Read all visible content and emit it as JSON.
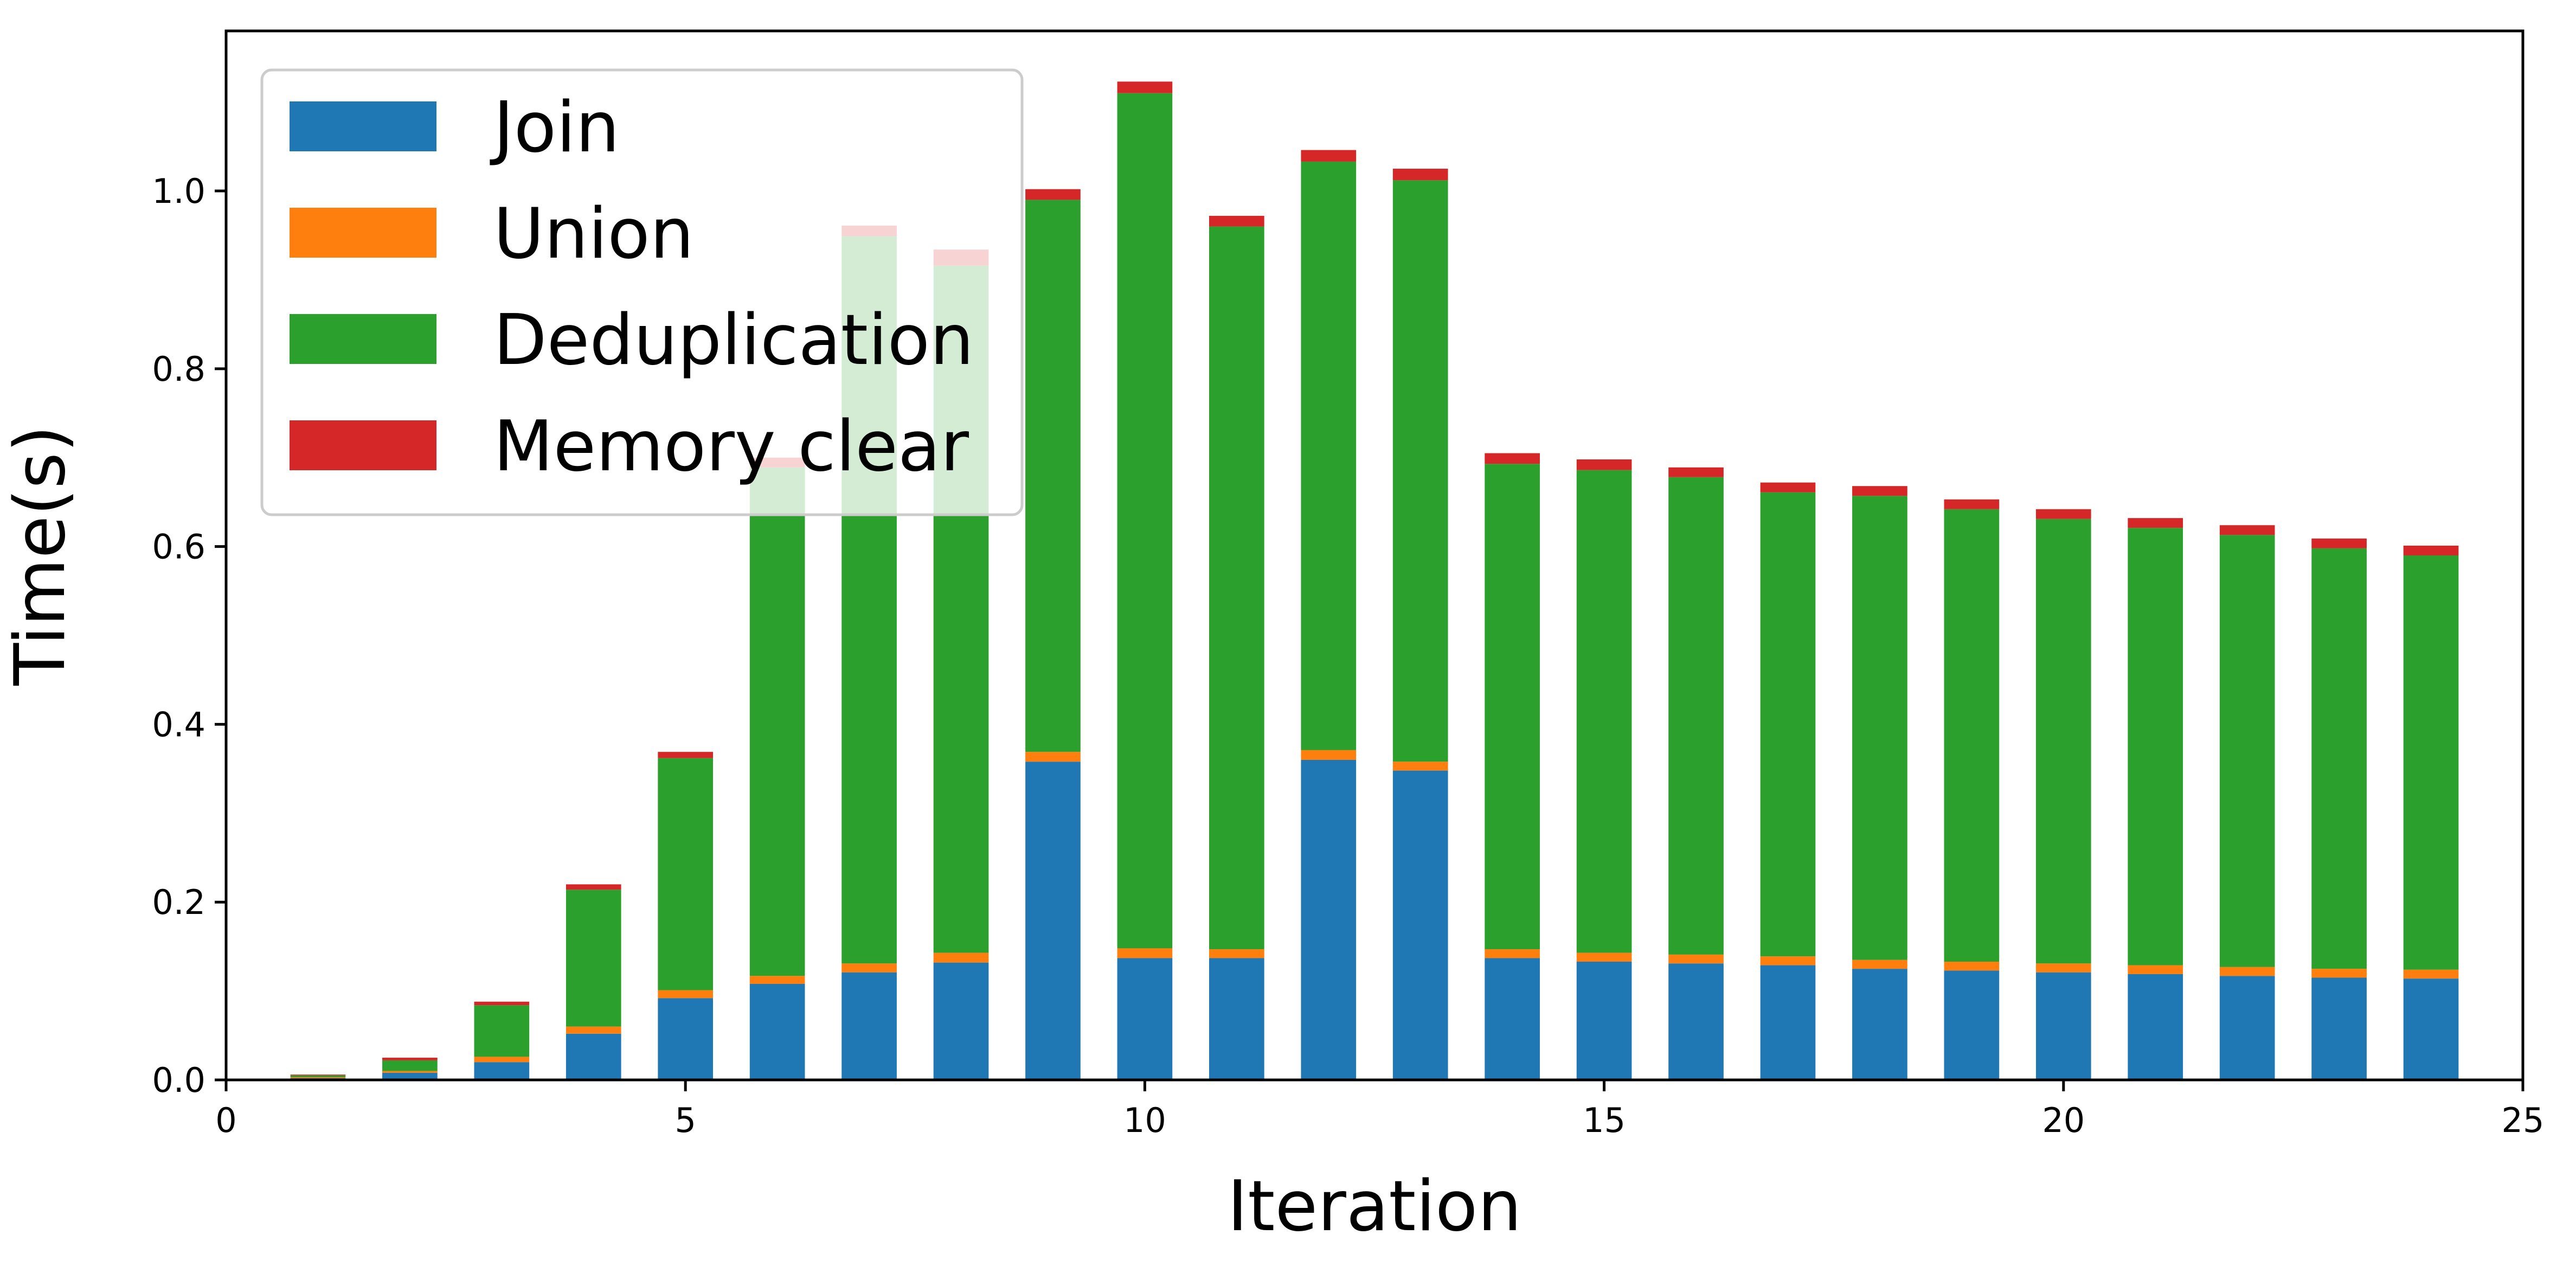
{
  "chart_data": {
    "type": "bar",
    "stacked": true,
    "xlabel": "Iteration",
    "ylabel": "Time(s)",
    "xlim": [
      0,
      25
    ],
    "ylim": [
      0,
      1.18
    ],
    "xticks": [
      "0",
      "5",
      "10",
      "15",
      "20",
      "25"
    ],
    "yticks": [
      "0.0",
      "0.2",
      "0.4",
      "0.6",
      "0.8",
      "1.0"
    ],
    "grid": false,
    "legend_position": "top-left",
    "x": [
      1,
      2,
      3,
      4,
      5,
      6,
      7,
      8,
      9,
      10,
      11,
      12,
      13,
      14,
      15,
      16,
      17,
      18,
      19,
      20,
      21,
      22,
      23,
      24
    ],
    "series": [
      {
        "name": "Join",
        "color": "#1f77b4",
        "values": [
          0.002,
          0.008,
          0.02,
          0.052,
          0.092,
          0.108,
          0.121,
          0.132,
          0.358,
          0.137,
          0.137,
          0.36,
          0.348,
          0.137,
          0.133,
          0.131,
          0.129,
          0.125,
          0.123,
          0.121,
          0.119,
          0.117,
          0.115,
          0.114
        ]
      },
      {
        "name": "Union",
        "color": "#ff7f0e",
        "values": [
          0.001,
          0.002,
          0.006,
          0.008,
          0.009,
          0.009,
          0.01,
          0.011,
          0.011,
          0.011,
          0.01,
          0.011,
          0.01,
          0.01,
          0.01,
          0.01,
          0.01,
          0.01,
          0.01,
          0.01,
          0.01,
          0.01,
          0.01,
          0.01
        ]
      },
      {
        "name": "Deduplication",
        "color": "#2ca02c",
        "values": [
          0.002,
          0.012,
          0.058,
          0.154,
          0.261,
          0.572,
          0.818,
          0.773,
          0.621,
          0.962,
          0.813,
          0.662,
          0.654,
          0.546,
          0.543,
          0.537,
          0.522,
          0.522,
          0.509,
          0.5,
          0.492,
          0.486,
          0.473,
          0.466
        ]
      },
      {
        "name": "Memory clear",
        "color": "#d62728",
        "values": [
          0.001,
          0.003,
          0.004,
          0.006,
          0.007,
          0.011,
          0.012,
          0.018,
          0.012,
          0.013,
          0.012,
          0.013,
          0.013,
          0.012,
          0.012,
          0.011,
          0.011,
          0.011,
          0.011,
          0.011,
          0.011,
          0.011,
          0.011,
          0.011
        ]
      }
    ]
  }
}
